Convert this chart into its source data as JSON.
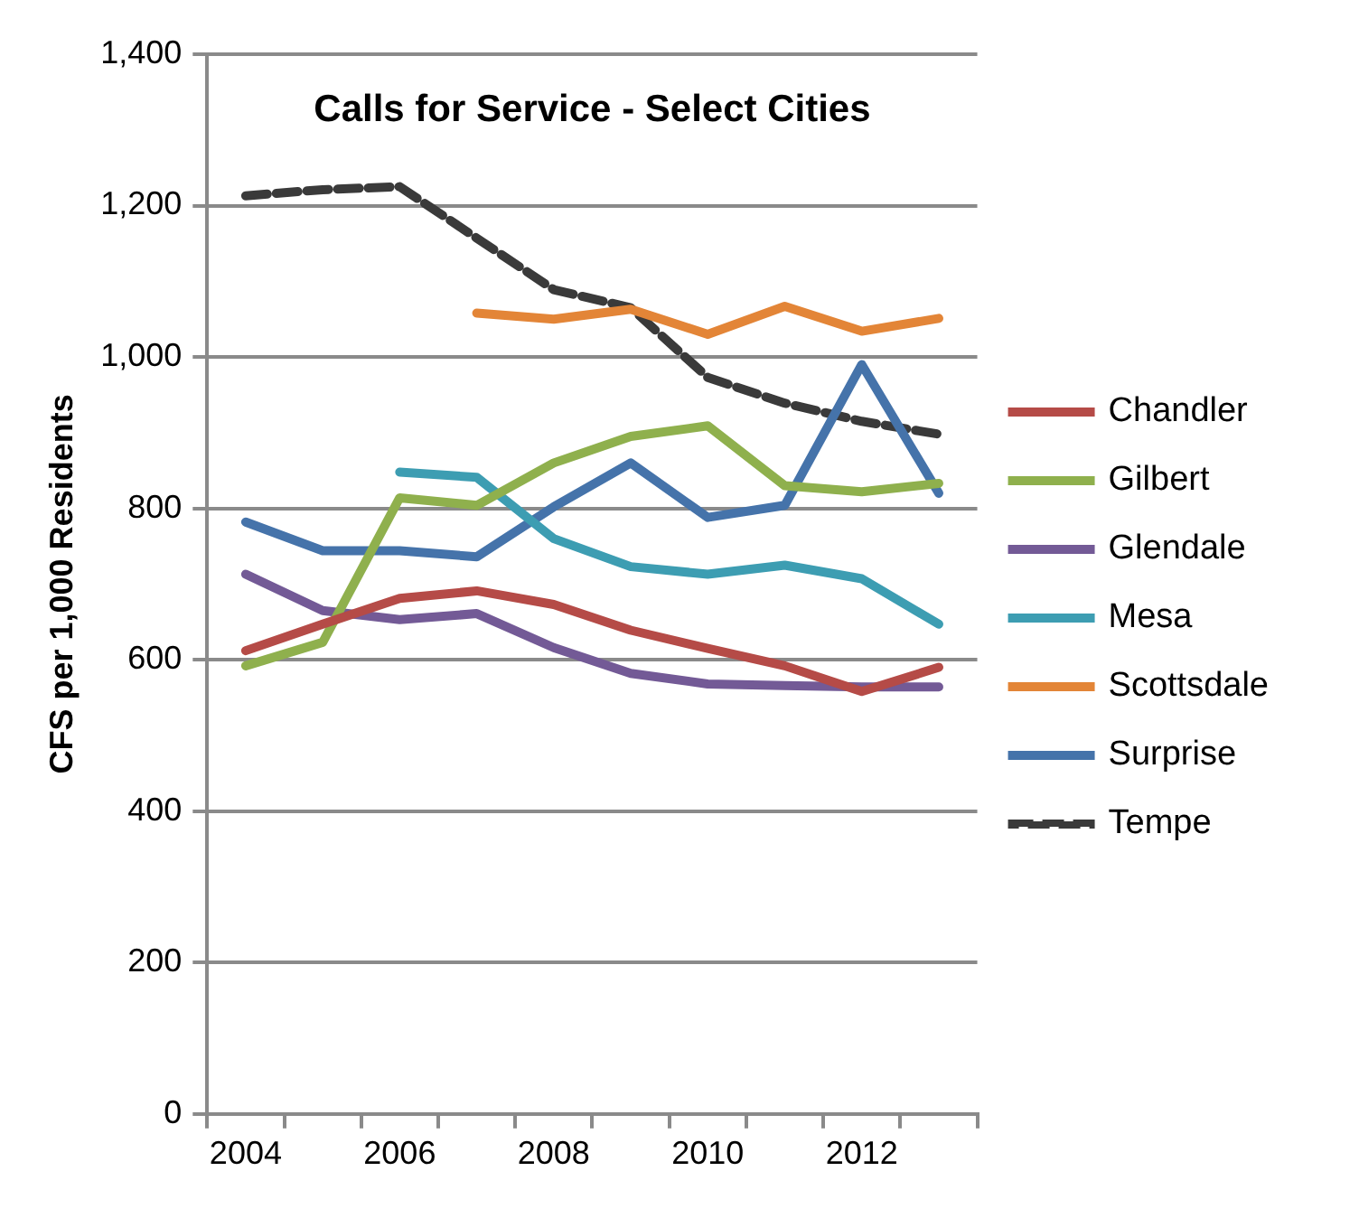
{
  "chart_data": {
    "type": "line",
    "title": "Calls for Service - Select Cities",
    "ylabel": "CFS per 1,000 Residents",
    "categories": [
      "2004",
      null,
      "2006",
      null,
      "2008",
      null,
      "2010",
      null,
      "2012",
      null
    ],
    "ylim": [
      0,
      1400
    ],
    "yticks": [
      0,
      {
        "value": 200,
        "label": "200"
      },
      {
        "value": 400,
        "label": "400"
      },
      {
        "value": 600,
        "label": "600"
      },
      {
        "value": 800,
        "label": "800"
      },
      {
        "value": 1000,
        "label": "1,000"
      },
      {
        "value": 1200,
        "label": "1,200"
      },
      {
        "value": 1400,
        "label": "1,400"
      }
    ],
    "grid": "y",
    "legend": "right",
    "marker": "none",
    "series": [
      {
        "name": "Chandler",
        "color": "#b54b47",
        "values": [
          612,
          647,
          681,
          691,
          673,
          639,
          615,
          592,
          558,
          590
        ]
      },
      {
        "name": "Gilbert",
        "color": "#8fb04d",
        "values": [
          592,
          623,
          814,
          804,
          860,
          895,
          909,
          830,
          822,
          833
        ]
      },
      {
        "name": "Glendale",
        "color": "#735a96",
        "values": [
          713,
          665,
          653,
          661,
          616,
          582,
          568,
          566,
          564,
          564
        ]
      },
      {
        "name": "Mesa",
        "color": "#3d9db2",
        "values": [
          null,
          null,
          848,
          841,
          760,
          723,
          713,
          725,
          707,
          647
        ]
      },
      {
        "name": "Scottsdale",
        "color": "#e38537",
        "values": [
          null,
          null,
          null,
          1058,
          1050,
          1063,
          1030,
          1067,
          1034,
          1051
        ]
      },
      {
        "name": "Surprise",
        "color": "#4573aa",
        "values": [
          782,
          744,
          744,
          736,
          802,
          860,
          788,
          804,
          990,
          820
        ]
      },
      {
        "name": "Tempe",
        "color": "#3a3a3a",
        "line_style": "dashed",
        "values": [
          1213,
          1221,
          1225,
          1157,
          1089,
          1065,
          973,
          939,
          915,
          898
        ]
      }
    ]
  }
}
